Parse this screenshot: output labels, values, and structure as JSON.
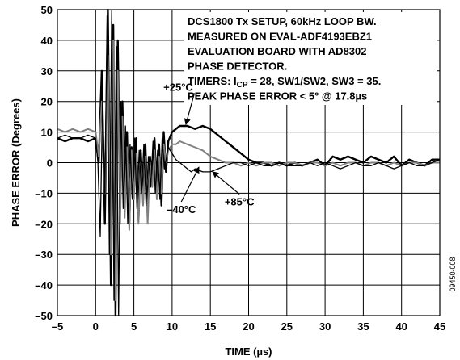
{
  "chart_data": {
    "type": "line",
    "xlabel": "TIME (µs)",
    "ylabel": "PHASE ERROR (Degrees)",
    "xlim": [
      -5,
      45
    ],
    "ylim": [
      -50,
      50
    ],
    "x_ticks": [
      -5,
      0,
      5,
      10,
      15,
      20,
      25,
      30,
      35,
      40,
      45
    ],
    "y_ticks": [
      50,
      40,
      30,
      20,
      10,
      0,
      -10,
      -20,
      -30,
      -40,
      -50
    ],
    "x_tick_labels": [
      "–5",
      "0",
      "5",
      "10",
      "15",
      "20",
      "25",
      "30",
      "35",
      "40",
      "45"
    ],
    "y_tick_labels": [
      "50",
      "40",
      "30",
      "20",
      "10",
      "0",
      "–10",
      "–20",
      "–30",
      "–40",
      "–50"
    ],
    "grid": true,
    "notes": [
      "DCS1800 Tx SETUP, 60kHz LOOP BW.",
      "MEASURED ON EVAL-ADF4193EBZ1",
      "EVALUATION BOARD WITH AD8302",
      "PHASE DETECTOR."
    ],
    "timers_note": {
      "prefix": "TIMERS: I",
      "subscript": "CP",
      "suffix": " = 28, SW1/SW2, SW3 = 35."
    },
    "peak_note": "PEAK PHASE ERROR < 5° @ 17.8µs",
    "figure_id": "09450-008",
    "series": [
      {
        "name": "+25°C",
        "color": "#000000",
        "width": 2.4,
        "x": [
          -5,
          -4,
          -3,
          -2,
          -1,
          0,
          0.4,
          0.8,
          1.2,
          1.6,
          2.0,
          2.3,
          2.6,
          2.9,
          3.2,
          3.5,
          3.8,
          4.1,
          4.4,
          4.7,
          5.0,
          5.3,
          5.6,
          5.9,
          6.2,
          6.5,
          6.8,
          7.1,
          7.4,
          7.7,
          8.0,
          8.3,
          8.6,
          8.9,
          9.2,
          9.5,
          10,
          10.5,
          11,
          12,
          13,
          14,
          15,
          16,
          17,
          18,
          19,
          20,
          21,
          22,
          23,
          24,
          25,
          26,
          27,
          28,
          29,
          30,
          31,
          32,
          33,
          34,
          35,
          36,
          37,
          38,
          39,
          40,
          41,
          42,
          43,
          44,
          45
        ],
        "y": [
          8,
          7,
          8,
          8,
          7,
          8,
          0,
          30,
          -20,
          50,
          -40,
          45,
          -50,
          40,
          -15,
          20,
          -10,
          10,
          -20,
          5,
          -8,
          8,
          -18,
          4,
          -12,
          6,
          -16,
          2,
          -5,
          8,
          -10,
          6,
          -14,
          10,
          -3,
          7,
          10,
          11,
          12,
          12,
          11,
          12,
          11,
          9,
          7,
          5,
          3,
          1,
          0,
          0,
          -1,
          0,
          -1,
          0,
          -1,
          0,
          1,
          -1,
          2,
          1,
          2,
          1,
          0,
          2,
          1,
          0,
          2,
          -1,
          1,
          0,
          -1,
          1,
          1
        ]
      },
      {
        "name": "–40°C",
        "color": "#808080",
        "width": 2.0,
        "x": [
          -5,
          -4,
          -3,
          -2,
          -1,
          0,
          0.4,
          0.8,
          1.2,
          1.6,
          2.0,
          2.3,
          2.6,
          2.9,
          3.2,
          3.5,
          3.8,
          4.1,
          4.4,
          4.7,
          5.0,
          5.3,
          5.6,
          5.9,
          6.2,
          6.5,
          6.8,
          7.1,
          7.4,
          7.7,
          8.0,
          8.3,
          8.6,
          8.9,
          9.2,
          9.5,
          10,
          10.5,
          11,
          12,
          13,
          14,
          15,
          16,
          17,
          18,
          19,
          20,
          21,
          22,
          23,
          24,
          25,
          26,
          27,
          28,
          29,
          30,
          31,
          32,
          33,
          34,
          35,
          36,
          37,
          38,
          39,
          40,
          41,
          42,
          43,
          44,
          45
        ],
        "y": [
          11,
          10,
          11,
          10,
          11,
          10,
          2,
          20,
          -10,
          35,
          -30,
          40,
          -45,
          30,
          -20,
          15,
          -18,
          5,
          -22,
          4,
          -12,
          3,
          -20,
          0,
          -14,
          2,
          -20,
          0,
          -8,
          4,
          -12,
          2,
          -10,
          6,
          0,
          4,
          6,
          6,
          7,
          6,
          5,
          4,
          2,
          1,
          0,
          0,
          -1,
          0,
          -1,
          0,
          0,
          -1,
          0,
          0,
          -1,
          0,
          0,
          -1,
          0,
          -1,
          0,
          0,
          -1,
          0,
          0,
          -1,
          0,
          -1,
          0,
          0,
          -1,
          0,
          0
        ]
      },
      {
        "name": "+85°C",
        "color": "#000000",
        "width": 1.3,
        "x": [
          -5,
          -4,
          -3,
          -2,
          -1,
          0,
          0.3,
          0.6,
          0.9,
          1.2,
          1.5,
          1.8,
          2.1,
          2.4,
          2.7,
          3.0,
          3.3,
          3.6,
          3.9,
          4.2,
          4.5,
          4.8,
          5.1,
          5.4,
          5.7,
          6.0,
          6.3,
          6.6,
          6.9,
          7.2,
          7.5,
          7.8,
          8.1,
          8.4,
          8.7,
          9.0,
          9.5,
          10,
          10.5,
          11,
          11.5,
          12,
          12.5,
          13,
          14,
          15,
          16,
          17,
          18,
          19,
          20,
          21,
          22,
          23,
          24,
          25,
          26,
          27,
          28,
          29,
          30,
          31,
          32,
          33,
          34,
          35,
          36,
          37,
          38,
          39,
          40,
          41,
          42,
          43,
          44,
          45
        ],
        "y": [
          8,
          9,
          8,
          8,
          9,
          8,
          0,
          -24,
          20,
          -10,
          48,
          -30,
          50,
          -45,
          38,
          -50,
          20,
          -15,
          12,
          -20,
          6,
          -12,
          8,
          -15,
          4,
          -10,
          6,
          -14,
          2,
          -8,
          7,
          -10,
          4,
          -12,
          8,
          -2,
          5,
          3,
          1,
          0,
          -1,
          -2,
          -3,
          -2,
          -3,
          -3,
          -2,
          -1,
          0,
          0,
          -1,
          0,
          -1,
          -1,
          0,
          -1,
          -1,
          -1,
          0,
          -1,
          0,
          -1,
          -2,
          -1,
          0,
          -1,
          -1,
          0,
          -1,
          -2,
          -1,
          0,
          -1,
          -1,
          0,
          1
        ]
      }
    ],
    "annotations": [
      {
        "label": "+25°C",
        "text_at": [
          10.8,
          23.5
        ],
        "arrow_to": [
          11.8,
          12.5
        ]
      },
      {
        "label": "–40°C",
        "text_at": [
          11.2,
          -16.5
        ],
        "arrow_to": [
          13.5,
          -1.5
        ]
      },
      {
        "label": "+85°C",
        "text_at": [
          18.8,
          -14
        ],
        "arrow_to": [
          15.3,
          -3
        ]
      }
    ]
  }
}
